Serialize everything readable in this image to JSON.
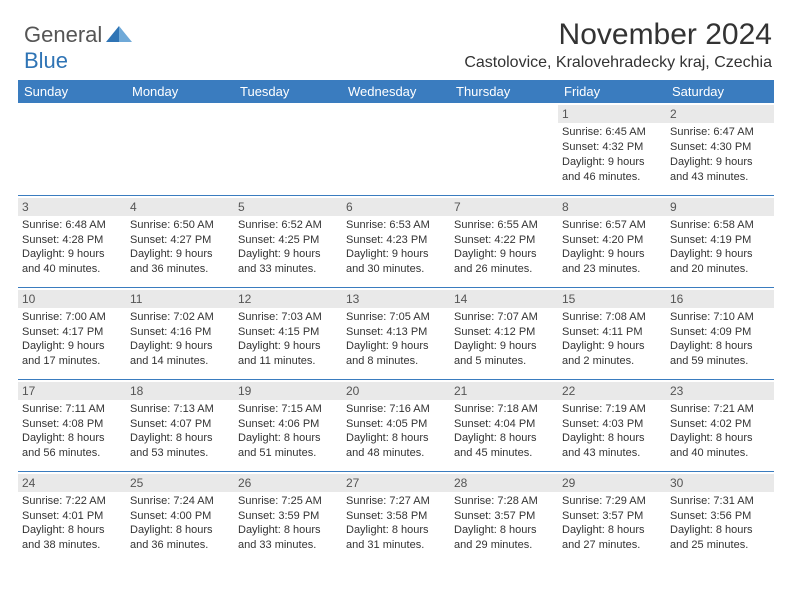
{
  "brand": {
    "part1": "General",
    "part2": "Blue"
  },
  "title": "November 2024",
  "location": "Castolovice, Kralovehradecky kraj, Czechia",
  "colors": {
    "header_bg": "#3a7cbf",
    "header_text": "#ffffff",
    "daynum_bg": "#e9e9e9",
    "border": "#3a7cbf",
    "text": "#333333",
    "brand_blue": "#2f74b5"
  },
  "day_headers": [
    "Sunday",
    "Monday",
    "Tuesday",
    "Wednesday",
    "Thursday",
    "Friday",
    "Saturday"
  ],
  "weeks": [
    [
      null,
      null,
      null,
      null,
      null,
      {
        "n": "1",
        "sr": "Sunrise: 6:45 AM",
        "ss": "Sunset: 4:32 PM",
        "d1": "Daylight: 9 hours",
        "d2": "and 46 minutes."
      },
      {
        "n": "2",
        "sr": "Sunrise: 6:47 AM",
        "ss": "Sunset: 4:30 PM",
        "d1": "Daylight: 9 hours",
        "d2": "and 43 minutes."
      }
    ],
    [
      {
        "n": "3",
        "sr": "Sunrise: 6:48 AM",
        "ss": "Sunset: 4:28 PM",
        "d1": "Daylight: 9 hours",
        "d2": "and 40 minutes."
      },
      {
        "n": "4",
        "sr": "Sunrise: 6:50 AM",
        "ss": "Sunset: 4:27 PM",
        "d1": "Daylight: 9 hours",
        "d2": "and 36 minutes."
      },
      {
        "n": "5",
        "sr": "Sunrise: 6:52 AM",
        "ss": "Sunset: 4:25 PM",
        "d1": "Daylight: 9 hours",
        "d2": "and 33 minutes."
      },
      {
        "n": "6",
        "sr": "Sunrise: 6:53 AM",
        "ss": "Sunset: 4:23 PM",
        "d1": "Daylight: 9 hours",
        "d2": "and 30 minutes."
      },
      {
        "n": "7",
        "sr": "Sunrise: 6:55 AM",
        "ss": "Sunset: 4:22 PM",
        "d1": "Daylight: 9 hours",
        "d2": "and 26 minutes."
      },
      {
        "n": "8",
        "sr": "Sunrise: 6:57 AM",
        "ss": "Sunset: 4:20 PM",
        "d1": "Daylight: 9 hours",
        "d2": "and 23 minutes."
      },
      {
        "n": "9",
        "sr": "Sunrise: 6:58 AM",
        "ss": "Sunset: 4:19 PM",
        "d1": "Daylight: 9 hours",
        "d2": "and 20 minutes."
      }
    ],
    [
      {
        "n": "10",
        "sr": "Sunrise: 7:00 AM",
        "ss": "Sunset: 4:17 PM",
        "d1": "Daylight: 9 hours",
        "d2": "and 17 minutes."
      },
      {
        "n": "11",
        "sr": "Sunrise: 7:02 AM",
        "ss": "Sunset: 4:16 PM",
        "d1": "Daylight: 9 hours",
        "d2": "and 14 minutes."
      },
      {
        "n": "12",
        "sr": "Sunrise: 7:03 AM",
        "ss": "Sunset: 4:15 PM",
        "d1": "Daylight: 9 hours",
        "d2": "and 11 minutes."
      },
      {
        "n": "13",
        "sr": "Sunrise: 7:05 AM",
        "ss": "Sunset: 4:13 PM",
        "d1": "Daylight: 9 hours",
        "d2": "and 8 minutes."
      },
      {
        "n": "14",
        "sr": "Sunrise: 7:07 AM",
        "ss": "Sunset: 4:12 PM",
        "d1": "Daylight: 9 hours",
        "d2": "and 5 minutes."
      },
      {
        "n": "15",
        "sr": "Sunrise: 7:08 AM",
        "ss": "Sunset: 4:11 PM",
        "d1": "Daylight: 9 hours",
        "d2": "and 2 minutes."
      },
      {
        "n": "16",
        "sr": "Sunrise: 7:10 AM",
        "ss": "Sunset: 4:09 PM",
        "d1": "Daylight: 8 hours",
        "d2": "and 59 minutes."
      }
    ],
    [
      {
        "n": "17",
        "sr": "Sunrise: 7:11 AM",
        "ss": "Sunset: 4:08 PM",
        "d1": "Daylight: 8 hours",
        "d2": "and 56 minutes."
      },
      {
        "n": "18",
        "sr": "Sunrise: 7:13 AM",
        "ss": "Sunset: 4:07 PM",
        "d1": "Daylight: 8 hours",
        "d2": "and 53 minutes."
      },
      {
        "n": "19",
        "sr": "Sunrise: 7:15 AM",
        "ss": "Sunset: 4:06 PM",
        "d1": "Daylight: 8 hours",
        "d2": "and 51 minutes."
      },
      {
        "n": "20",
        "sr": "Sunrise: 7:16 AM",
        "ss": "Sunset: 4:05 PM",
        "d1": "Daylight: 8 hours",
        "d2": "and 48 minutes."
      },
      {
        "n": "21",
        "sr": "Sunrise: 7:18 AM",
        "ss": "Sunset: 4:04 PM",
        "d1": "Daylight: 8 hours",
        "d2": "and 45 minutes."
      },
      {
        "n": "22",
        "sr": "Sunrise: 7:19 AM",
        "ss": "Sunset: 4:03 PM",
        "d1": "Daylight: 8 hours",
        "d2": "and 43 minutes."
      },
      {
        "n": "23",
        "sr": "Sunrise: 7:21 AM",
        "ss": "Sunset: 4:02 PM",
        "d1": "Daylight: 8 hours",
        "d2": "and 40 minutes."
      }
    ],
    [
      {
        "n": "24",
        "sr": "Sunrise: 7:22 AM",
        "ss": "Sunset: 4:01 PM",
        "d1": "Daylight: 8 hours",
        "d2": "and 38 minutes."
      },
      {
        "n": "25",
        "sr": "Sunrise: 7:24 AM",
        "ss": "Sunset: 4:00 PM",
        "d1": "Daylight: 8 hours",
        "d2": "and 36 minutes."
      },
      {
        "n": "26",
        "sr": "Sunrise: 7:25 AM",
        "ss": "Sunset: 3:59 PM",
        "d1": "Daylight: 8 hours",
        "d2": "and 33 minutes."
      },
      {
        "n": "27",
        "sr": "Sunrise: 7:27 AM",
        "ss": "Sunset: 3:58 PM",
        "d1": "Daylight: 8 hours",
        "d2": "and 31 minutes."
      },
      {
        "n": "28",
        "sr": "Sunrise: 7:28 AM",
        "ss": "Sunset: 3:57 PM",
        "d1": "Daylight: 8 hours",
        "d2": "and 29 minutes."
      },
      {
        "n": "29",
        "sr": "Sunrise: 7:29 AM",
        "ss": "Sunset: 3:57 PM",
        "d1": "Daylight: 8 hours",
        "d2": "and 27 minutes."
      },
      {
        "n": "30",
        "sr": "Sunrise: 7:31 AM",
        "ss": "Sunset: 3:56 PM",
        "d1": "Daylight: 8 hours",
        "d2": "and 25 minutes."
      }
    ]
  ]
}
